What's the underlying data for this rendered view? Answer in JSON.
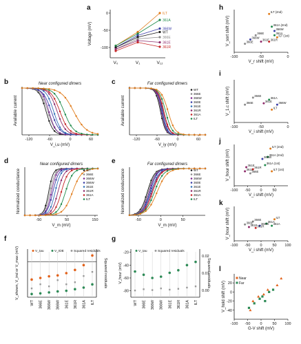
{
  "colors": {
    "WT": "#1a1a1a",
    "Q66E": "#8a8a8a",
    "S66E": "#7b2a8e",
    "S66W": "#3a3da6",
    "S68E": "#2f6fb5",
    "S61E": "#8e2a6a",
    "S61R": "#c62828",
    "S61A": "#1e8a4a",
    "ILT": "#e07b1a",
    "vhalf": "#2e8b57",
    "vind": "#e2621b",
    "vhi": "#2e8b57",
    "residuals": "#9a9a9a",
    "near": "#e2621b",
    "far": "#2e8b57"
  },
  "chart_data": [
    {
      "panel": "a",
      "type": "line",
      "ylabel": "Voltage (mV)",
      "ylim": [
        -130,
        10
      ],
      "yticks": [
        "0",
        "-50",
        "-100"
      ],
      "categories": [
        "V₀",
        "V₁",
        "V₁₂"
      ],
      "series": [
        {
          "name": "ILT",
          "key": "ILT",
          "values": [
            -95,
            -55,
            0
          ]
        },
        {
          "name": "361A",
          "key": "S61A",
          "values": [
            -95,
            -60,
            -20
          ]
        },
        {
          "name": "366W",
          "key": "S66W",
          "values": [
            -100,
            -65,
            -45
          ]
        },
        {
          "name": "WT",
          "key": "WT",
          "values": [
            -100,
            -70,
            -55
          ]
        },
        {
          "name": "366E",
          "key": "Q66E",
          "values": [
            -105,
            -75,
            -70
          ]
        },
        {
          "name": "361E",
          "key": "S61E",
          "values": [
            -105,
            -80,
            -85
          ]
        },
        {
          "name": "361R",
          "key": "S61R",
          "values": [
            -110,
            -85,
            -98
          ]
        }
      ]
    },
    {
      "panel": "b",
      "type": "line",
      "title": "Near configured dimers",
      "xlabel": "V_i,u (mV)",
      "ylabel": "Available current",
      "xlim": [
        -140,
        80
      ],
      "xticks": [
        "-120",
        "-60",
        "0",
        "60"
      ],
      "series": [
        {
          "key": "WT",
          "v50": -70,
          "k": 10
        },
        {
          "key": "Q66E",
          "v50": -65,
          "k": 11
        },
        {
          "key": "S66E",
          "v50": -62,
          "k": 10
        },
        {
          "key": "S66W",
          "v50": -55,
          "k": 12
        },
        {
          "key": "S68E",
          "v50": -48,
          "k": 11
        },
        {
          "key": "S61E",
          "v50": -38,
          "k": 12
        },
        {
          "key": "S61R",
          "v50": -30,
          "k": 13
        },
        {
          "key": "S61A",
          "v50": -18,
          "k": 14
        },
        {
          "key": "ILT",
          "v50": 10,
          "k": 18
        }
      ]
    },
    {
      "panel": "c",
      "type": "line",
      "title": "Far configured dimers",
      "xlabel": "V_iy (mV)",
      "ylabel": "Available current",
      "xlim": [
        -140,
        80
      ],
      "xticks": [
        "-120",
        "-60",
        "0",
        "60"
      ],
      "legend": [
        "WT",
        "366E",
        "366W",
        "360E",
        "361E",
        "361R",
        "361A",
        "ILT"
      ],
      "series": [
        {
          "key": "WT",
          "v50": -50,
          "k": 7
        },
        {
          "key": "Q66E",
          "v50": -48,
          "k": 7
        },
        {
          "key": "S66E",
          "v50": -47,
          "k": 7
        },
        {
          "key": "S66W",
          "v50": -45,
          "k": 7
        },
        {
          "key": "S68E",
          "v50": -44,
          "k": 7
        },
        {
          "key": "S61E",
          "v50": -42,
          "k": 8
        },
        {
          "key": "S61R",
          "v50": -40,
          "k": 8
        },
        {
          "key": "S61A",
          "v50": -35,
          "k": 9
        },
        {
          "key": "ILT",
          "v50": -28,
          "k": 10
        }
      ]
    },
    {
      "panel": "d",
      "type": "line",
      "title": "Near configured dimers",
      "xlabel": "V_m (mV)",
      "ylabel": "Normalized conductance",
      "xlim": [
        -100,
        160
      ],
      "xticks": [
        "-50",
        "50",
        "150"
      ],
      "legend": [
        "WT",
        "366E",
        "366W",
        "366W",
        "361E",
        "361R",
        "361A",
        "ILT"
      ],
      "series": [
        {
          "key": "WT",
          "v50": -15,
          "k": 8
        },
        {
          "key": "Q66E",
          "v50": -10,
          "k": 9
        },
        {
          "key": "S66E",
          "v50": -5,
          "k": 9
        },
        {
          "key": "S66W",
          "v50": 0,
          "k": 10
        },
        {
          "key": "S68E",
          "v50": 8,
          "k": 10
        },
        {
          "key": "S61E",
          "v50": 18,
          "k": 11
        },
        {
          "key": "S61R",
          "v50": 30,
          "k": 12
        },
        {
          "key": "S61A",
          "v50": 45,
          "k": 13
        },
        {
          "key": "ILT",
          "v50": 70,
          "k": 16
        }
      ]
    },
    {
      "panel": "e",
      "type": "line",
      "title": "Far configured dimers",
      "xlabel": "V_m (mV)",
      "ylabel": "Normalized conductance",
      "xlim": [
        -70,
        100
      ],
      "xticks": [
        "-50",
        "0",
        "50"
      ],
      "legend": [
        "WT",
        "366E",
        "366W",
        "360E",
        "361E",
        "361R",
        "361A",
        "ILT"
      ],
      "series": [
        {
          "key": "WT",
          "v50": -30,
          "k": 8
        },
        {
          "key": "Q66E",
          "v50": -28,
          "k": 8
        },
        {
          "key": "S66E",
          "v50": -26,
          "k": 8
        },
        {
          "key": "S66W",
          "v50": -24,
          "k": 8
        },
        {
          "key": "S68E",
          "v50": -22,
          "k": 9
        },
        {
          "key": "S61E",
          "v50": -20,
          "k": 9
        },
        {
          "key": "S61R",
          "v50": -18,
          "k": 9
        },
        {
          "key": "S61A",
          "v50": -14,
          "k": 10
        },
        {
          "key": "ILT",
          "v50": -8,
          "k": 11
        }
      ]
    },
    {
      "panel": "f",
      "type": "scatter",
      "ylabel": "V_shown, V_ind or V_max (mV)",
      "y2label": "Squared residuals",
      "ylim": [
        -110,
        40
      ],
      "categories": [
        "WT",
        "366E",
        "366W",
        "366W",
        "361E",
        "361R",
        "361A",
        "ILT"
      ],
      "legend": [
        "V_tau",
        "V_IDE",
        "Squared residuals"
      ],
      "series": [
        {
          "name": "V_tau",
          "key": "vind",
          "values": [
            -55,
            -50,
            -45,
            -42,
            -35,
            -25,
            -10,
            20
          ]
        },
        {
          "name": "V_IDE",
          "key": "vhi",
          "values": [
            -100,
            -98,
            -95,
            -92,
            -90,
            -85,
            -80,
            -70
          ]
        },
        {
          "name": "Squared residuals",
          "key": "residuals",
          "values": [
            0.01,
            0.02,
            0.015,
            0.03,
            0.02,
            0.025,
            0.04,
            0.05
          ]
        }
      ]
    },
    {
      "panel": "g",
      "type": "scatter",
      "ylabel": "V_hour (mV)",
      "y2label": "Squared residuals",
      "ylim": [
        -90,
        -15
      ],
      "yticks": [
        "-20",
        "-40",
        "-60",
        "-80"
      ],
      "y2ticks": [
        "0.02",
        "0.01",
        "0.00"
      ],
      "categories": [
        "WT",
        "366E",
        "366W",
        "366W",
        "361E",
        "361R",
        "361A",
        "ILT"
      ],
      "legend": [
        "V_tau",
        "Squared residuals"
      ],
      "series": [
        {
          "name": "V_tau",
          "key": "vhalf",
          "values": [
            -50,
            -55,
            -60,
            -58,
            -52,
            -48,
            -40,
            -35
          ]
        },
        {
          "name": "Squared residuals",
          "key": "residuals",
          "values": [
            0.005,
            0.008,
            0.006,
            0.01,
            0.007,
            0.009,
            0.012,
            0.015
          ]
        }
      ]
    },
    {
      "panel": "h",
      "type": "scatter",
      "xlabel": "V_r shift (mV)",
      "ylabel": "V_sort shift (mV)",
      "xlim": [
        -100,
        0
      ],
      "xticks": [
        "-100",
        "-50",
        "0"
      ],
      "ylim": [
        -80,
        20
      ],
      "points": [
        {
          "label": "ILT (2nd)",
          "key": "ILT",
          "x": -35,
          "y": 10
        },
        {
          "label": "361A (2nd)",
          "key": "S61A",
          "x": -30,
          "y": -20
        },
        {
          "label": "366W",
          "key": "S66W",
          "x": -25,
          "y": -30
        },
        {
          "label": "361A",
          "key": "S61A",
          "x": -25,
          "y": -40
        },
        {
          "label": "ILT (1st)",
          "key": "ILT",
          "x": -20,
          "y": -45
        },
        {
          "label": "366E",
          "key": "Q66E",
          "x": -60,
          "y": -40
        },
        {
          "label": "366W",
          "key": "S66W",
          "x": -70,
          "y": -50
        },
        {
          "label": "361E",
          "key": "S61E",
          "x": -50,
          "y": -55
        },
        {
          "label": "361R",
          "key": "S61R",
          "x": -35,
          "y": -55
        },
        {
          "label": "366E",
          "key": "Q66E",
          "x": -80,
          "y": -60
        }
      ]
    },
    {
      "panel": "i",
      "type": "scatter",
      "xlabel": "V_i shift (mV)",
      "ylabel": "V_1.c shift (mV)",
      "xlim": [
        -100,
        0
      ],
      "xticks": [
        "-100",
        "-50",
        "0"
      ],
      "ylim": [
        -30,
        30
      ],
      "points": [
        {
          "label": "366E",
          "key": "Q66E",
          "x": -65,
          "y": 5
        },
        {
          "label": "361A",
          "key": "S61A",
          "x": -35,
          "y": 2
        },
        {
          "label": "366E",
          "key": "Q66E",
          "x": -80,
          "y": -5
        },
        {
          "label": "361E",
          "key": "S61E",
          "x": -45,
          "y": -3
        },
        {
          "label": "366W",
          "key": "S66W",
          "x": -20,
          "y": -5
        },
        {
          "label": "ILT",
          "key": "ILT",
          "x": -30,
          "y": -12
        }
      ]
    },
    {
      "panel": "j",
      "type": "scatter",
      "xlabel": "V_i shift (mV)",
      "ylabel": "V_hour shift (mV)",
      "xlim": [
        -100,
        100
      ],
      "xticks": [
        "-100",
        "-50",
        "0",
        "50"
      ],
      "ylim": [
        -60,
        40
      ],
      "points": [
        {
          "label": "ILT (2nd)",
          "key": "ILT",
          "x": 35,
          "y": 30
        },
        {
          "label": "361A (2nd)",
          "key": "S61A",
          "x": 25,
          "y": 10
        },
        {
          "label": "366W",
          "key": "S66W",
          "x": 5,
          "y": 5
        },
        {
          "label": "361A (1st)",
          "key": "S61A",
          "x": 15,
          "y": -10
        },
        {
          "label": "ILT (1st)",
          "key": "ILT",
          "x": 40,
          "y": -25
        },
        {
          "label": "361E",
          "key": "S61E",
          "x": -55,
          "y": -15
        },
        {
          "label": "361E",
          "key": "S61E",
          "x": -60,
          "y": -25
        },
        {
          "label": "361R",
          "key": "S61R",
          "x": -30,
          "y": -20
        },
        {
          "label": "366E",
          "key": "Q66E",
          "x": -40,
          "y": -30
        }
      ]
    },
    {
      "panel": "k",
      "type": "scatter",
      "xlabel": "V_i shift (mV)",
      "ylabel": "V_hour shift (mV)",
      "xlim": [
        -100,
        100
      ],
      "xticks": [
        "-100",
        "-50",
        "0",
        "50",
        "100"
      ],
      "ylim": [
        -40,
        40
      ],
      "points": [
        {
          "label": "366E",
          "key": "Q66E",
          "x": -30,
          "y": 5
        },
        {
          "label": "361A",
          "key": "S61A",
          "x": 20,
          "y": 0
        },
        {
          "label": "ILT",
          "key": "ILT",
          "x": 50,
          "y": 10
        },
        {
          "label": "366E",
          "key": "Q66E",
          "x": -60,
          "y": -2
        },
        {
          "label": "361E",
          "key": "S61E",
          "x": -45,
          "y": -8
        },
        {
          "label": "366W",
          "key": "S66W",
          "x": -5,
          "y": -5
        },
        {
          "label": "361R",
          "key": "S61R",
          "x": -20,
          "y": -10
        },
        {
          "label": "361A",
          "key": "S61A",
          "x": 40,
          "y": -5
        }
      ]
    },
    {
      "panel": "l",
      "type": "scatter",
      "xlabel": "G-V shift (mV)",
      "ylabel": "V_hold shift (mV)",
      "xlim": [
        -100,
        100
      ],
      "xticks": [
        "-100",
        "-50",
        "0",
        "50",
        "100"
      ],
      "ylim": [
        -60,
        40
      ],
      "yticks": [
        "20",
        "0",
        "-20",
        "-40"
      ],
      "legend": [
        "Near",
        "Far"
      ],
      "series": [
        {
          "name": "Near",
          "key": "near",
          "points": [
            [
              -40,
              -40
            ],
            [
              -30,
              -20
            ],
            [
              -10,
              -10
            ],
            [
              10,
              -5
            ],
            [
              25,
              5
            ],
            [
              60,
              15
            ],
            [
              75,
              30
            ]
          ]
        },
        {
          "name": "Far",
          "key": "far",
          "points": [
            [
              -45,
              -35
            ],
            [
              -25,
              -25
            ],
            [
              -5,
              -15
            ],
            [
              5,
              -10
            ],
            [
              15,
              -20
            ],
            [
              30,
              0
            ],
            [
              45,
              5
            ]
          ]
        }
      ]
    }
  ],
  "panel_labels": {
    "a": "a",
    "b": "b",
    "c": "c",
    "d": "d",
    "e": "e",
    "f": "f",
    "g": "g",
    "h": "h",
    "i": "i",
    "j": "j",
    "k": "k",
    "l": "l"
  }
}
